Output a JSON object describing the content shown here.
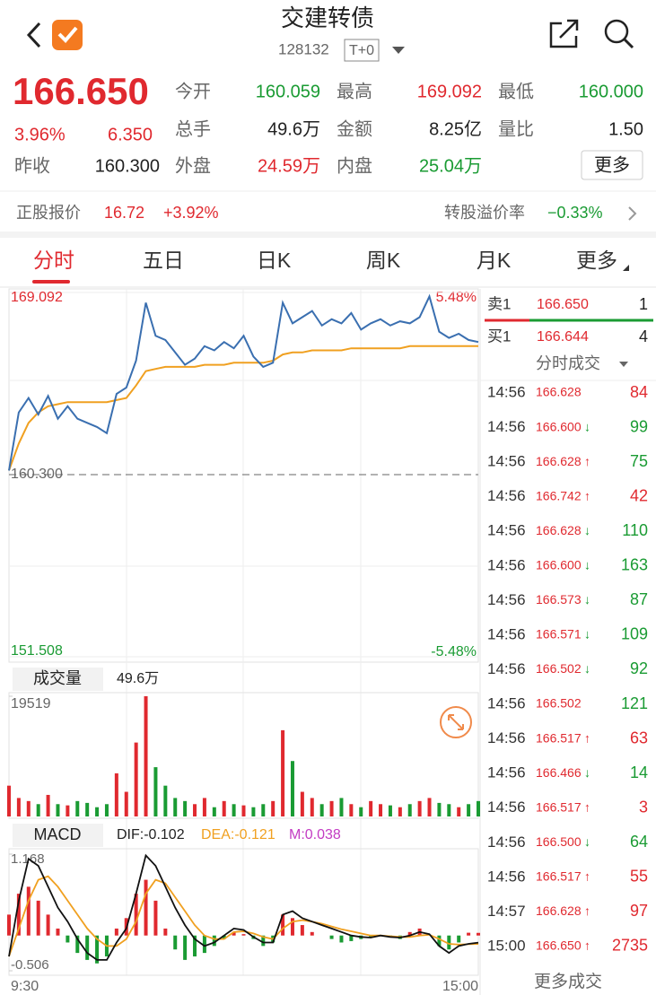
{
  "header": {
    "title": "交建转债",
    "code": "128132",
    "tag": "T+0"
  },
  "quote": {
    "price": "166.650",
    "change_pct": "3.96%",
    "change": "6.350",
    "prev_close_label": "昨收",
    "prev_close": "160.300",
    "fields": [
      {
        "label": "今开",
        "value": "160.059",
        "color": "#1a9b33"
      },
      {
        "label": "最高",
        "value": "169.092",
        "color": "#e0292f"
      },
      {
        "label": "最低",
        "value": "160.000",
        "color": "#1a9b33"
      },
      {
        "label": "总手",
        "value": "49.6万",
        "color": "#222222"
      },
      {
        "label": "金额",
        "value": "8.25亿",
        "color": "#222222"
      },
      {
        "label": "量比",
        "value": "1.50",
        "color": "#222222"
      },
      {
        "label": "外盘",
        "value": "24.59万",
        "color": "#e0292f"
      },
      {
        "label": "内盘",
        "value": "25.04万",
        "color": "#1a9b33"
      }
    ],
    "more_button": "更多"
  },
  "underlying": {
    "label": "正股报价",
    "price": "16.72",
    "change": "+3.92%",
    "premium_label": "转股溢价率",
    "premium": "−0.33%"
  },
  "tabs": [
    "分时",
    "五日",
    "日K",
    "周K",
    "月K",
    "更多"
  ],
  "intraday": {
    "ylim": [
      151.508,
      169.092
    ],
    "yticks": [
      169.092,
      {
        "value": 160.3,
        "label": "160.300"
      },
      151.508
    ],
    "pct_labels": [
      "5.48%",
      "-5.48%"
    ],
    "price_color": "#3a6fb0",
    "avg_color": "#f0a020",
    "price": [
      160.5,
      163.3,
      164.0,
      163.2,
      164.1,
      163.0,
      163.6,
      163.0,
      162.8,
      162.6,
      162.3,
      164.2,
      164.5,
      165.8,
      168.6,
      167.0,
      166.8,
      166.2,
      165.6,
      165.9,
      166.5,
      166.3,
      166.7,
      166.4,
      167.0,
      166.0,
      165.5,
      165.7,
      168.6,
      167.6,
      167.9,
      168.2,
      167.5,
      167.8,
      167.6,
      168.1,
      167.3,
      167.6,
      167.8,
      167.5,
      167.7,
      167.6,
      167.9,
      168.9,
      167.2,
      166.9,
      167.1,
      166.8,
      166.7
    ],
    "avg": [
      160.5,
      161.8,
      162.8,
      163.3,
      163.6,
      163.7,
      163.8,
      163.8,
      163.8,
      163.8,
      163.8,
      163.9,
      164.0,
      164.6,
      165.3,
      165.4,
      165.5,
      165.5,
      165.5,
      165.5,
      165.6,
      165.6,
      165.6,
      165.7,
      165.7,
      165.7,
      165.7,
      165.8,
      166.1,
      166.2,
      166.2,
      166.3,
      166.3,
      166.3,
      166.3,
      166.4,
      166.4,
      166.4,
      166.4,
      166.4,
      166.4,
      166.5,
      166.5,
      166.5,
      166.5,
      166.5,
      166.5,
      166.5,
      166.5
    ],
    "x_labels": [
      "9:30",
      "15:00"
    ]
  },
  "volume": {
    "title": "成交量",
    "total": "49.6万",
    "ylim": [
      0,
      19519
    ],
    "yticks": [
      19519
    ],
    "values": [
      5000,
      3000,
      2500,
      2000,
      3500,
      2000,
      1800,
      2500,
      2200,
      1500,
      2000,
      7000,
      4000,
      12000,
      19519,
      8000,
      5000,
      3000,
      2500,
      2000,
      3000,
      1500,
      2500,
      2000,
      1800,
      1500,
      2000,
      2500,
      14000,
      9000,
      4000,
      3000,
      2000,
      2500,
      3000,
      2000,
      1500,
      2500,
      2000,
      1800,
      1500,
      2000,
      2500,
      3000,
      2200,
      2000,
      1500,
      2000,
      2500
    ]
  },
  "macd": {
    "title": "MACD",
    "dif_label": "DIF:-0.102",
    "dea_label": "DEA:-0.121",
    "m_label": "M:0.038",
    "ylim": [
      -0.506,
      1.168
    ],
    "yticks": [
      1.168,
      -0.506
    ],
    "dif_color": "#111111",
    "dea_color": "#f0a020",
    "dif": [
      -0.3,
      0.5,
      1.1,
      1.0,
      0.7,
      0.4,
      0.2,
      -0.05,
      -0.25,
      -0.35,
      -0.35,
      -0.1,
      0.1,
      0.6,
      1.15,
      1.0,
      0.7,
      0.4,
      0.15,
      -0.05,
      -0.15,
      -0.1,
      0.0,
      0.1,
      0.08,
      -0.02,
      -0.1,
      -0.1,
      0.3,
      0.35,
      0.25,
      0.2,
      0.15,
      0.1,
      0.05,
      0.0,
      -0.02,
      -0.03,
      0.0,
      -0.02,
      -0.03,
      0.0,
      0.05,
      0.02,
      -0.15,
      -0.25,
      -0.15,
      -0.12,
      -0.102
    ],
    "dea": [
      -0.3,
      0.1,
      0.5,
      0.8,
      0.85,
      0.7,
      0.5,
      0.3,
      0.1,
      -0.05,
      -0.15,
      -0.15,
      -0.05,
      0.2,
      0.6,
      0.8,
      0.75,
      0.55,
      0.35,
      0.15,
      0.0,
      -0.05,
      -0.05,
      0.05,
      0.06,
      0.03,
      -0.02,
      -0.05,
      0.1,
      0.2,
      0.22,
      0.2,
      0.17,
      0.13,
      0.09,
      0.06,
      0.03,
      0.0,
      0.0,
      -0.01,
      -0.02,
      -0.02,
      0.0,
      0.01,
      -0.05,
      -0.12,
      -0.13,
      -0.125,
      -0.121
    ],
    "hist": [
      0.3,
      0.6,
      0.7,
      0.5,
      0.3,
      0.1,
      -0.1,
      -0.25,
      -0.35,
      -0.4,
      -0.3,
      0.1,
      0.25,
      0.6,
      0.8,
      0.5,
      0.1,
      -0.2,
      -0.35,
      -0.3,
      -0.25,
      -0.15,
      -0.05,
      0.05,
      0.02,
      -0.05,
      -0.15,
      -0.1,
      0.3,
      0.25,
      0.15,
      0.05,
      0.0,
      -0.05,
      -0.1,
      -0.08,
      -0.05,
      -0.03,
      0.0,
      -0.02,
      -0.05,
      0.05,
      0.1,
      0.0,
      -0.15,
      -0.2,
      -0.1,
      0.04,
      0.038
    ]
  },
  "order_book": [
    {
      "side": "卖1",
      "price": "166.650",
      "volume": "1"
    },
    {
      "side": "买1",
      "price": "166.644",
      "volume": "4"
    }
  ],
  "trades_title": "分时成交",
  "trades": [
    {
      "time": "14:56",
      "price": "166.628",
      "volume": "84",
      "color": "#e0292f"
    },
    {
      "time": "14:56",
      "price": "166.600",
      "arrow": "↓",
      "volume": "99",
      "color": "#1a9b33"
    },
    {
      "time": "14:56",
      "price": "166.628",
      "arrow": "↑",
      "volume": "75",
      "color": "#1a9b33"
    },
    {
      "time": "14:56",
      "price": "166.742",
      "arrow": "↑",
      "volume": "42",
      "color": "#e0292f"
    },
    {
      "time": "14:56",
      "price": "166.628",
      "arrow": "↓",
      "volume": "110",
      "color": "#1a9b33"
    },
    {
      "time": "14:56",
      "price": "166.600",
      "arrow": "↓",
      "volume": "163",
      "color": "#1a9b33"
    },
    {
      "time": "14:56",
      "price": "166.573",
      "arrow": "↓",
      "volume": "87",
      "color": "#1a9b33"
    },
    {
      "time": "14:56",
      "price": "166.571",
      "arrow": "↓",
      "volume": "109",
      "color": "#1a9b33"
    },
    {
      "time": "14:56",
      "price": "166.502",
      "arrow": "↓",
      "volume": "92",
      "color": "#1a9b33"
    },
    {
      "time": "14:56",
      "price": "166.502",
      "volume": "121",
      "color": "#1a9b33"
    },
    {
      "time": "14:56",
      "price": "166.517",
      "arrow": "↑",
      "volume": "63",
      "color": "#e0292f"
    },
    {
      "time": "14:56",
      "price": "166.466",
      "arrow": "↓",
      "volume": "14",
      "color": "#1a9b33"
    },
    {
      "time": "14:56",
      "price": "166.517",
      "arrow": "↑",
      "volume": "3",
      "color": "#e0292f"
    },
    {
      "time": "14:56",
      "price": "166.500",
      "arrow": "↓",
      "volume": "64",
      "color": "#1a9b33"
    },
    {
      "time": "14:56",
      "price": "166.517",
      "arrow": "↑",
      "volume": "55",
      "color": "#e0292f"
    },
    {
      "time": "14:57",
      "price": "166.628",
      "arrow": "↑",
      "volume": "97",
      "color": "#e0292f"
    },
    {
      "time": "15:00",
      "price": "166.650",
      "arrow": "↑",
      "volume": "2735",
      "color": "#e0292f"
    }
  ],
  "more_trades": "更多成交"
}
